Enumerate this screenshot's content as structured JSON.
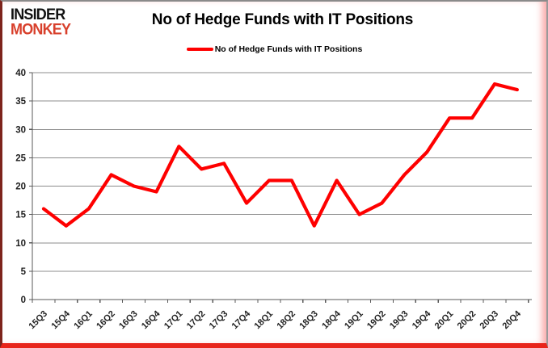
{
  "logo": {
    "line1": "INSIDER",
    "line2": "MONKEY",
    "line2_color": "#d8402c"
  },
  "header": {
    "title": "No of Hedge Funds with IT Positions"
  },
  "legend": {
    "label": "No of Hedge Funds with IT Positions",
    "swatch_color": "#fe0000"
  },
  "chart_data": {
    "type": "line",
    "title": "No of Hedge Funds with IT Positions",
    "categories": [
      "15Q3",
      "15Q4",
      "16Q1",
      "16Q2",
      "16Q3",
      "16Q4",
      "17Q1",
      "17Q2",
      "17Q3",
      "17Q4",
      "18Q1",
      "18Q2",
      "18Q3",
      "18Q4",
      "19Q1",
      "19Q2",
      "19Q3",
      "19Q4",
      "20Q1",
      "20Q2",
      "20Q3",
      "20Q4"
    ],
    "series": [
      {
        "name": "No of Hedge Funds with IT Positions",
        "color": "#fe0000",
        "values": [
          16,
          13,
          16,
          22,
          20,
          19,
          27,
          23,
          24,
          17,
          21,
          21,
          13,
          21,
          15,
          17,
          22,
          26,
          32,
          32,
          38,
          37
        ]
      }
    ],
    "xlabel": "",
    "ylabel": "",
    "ylim": [
      0,
      40
    ],
    "ytick_step": 5,
    "grid": true,
    "legend_position": "top-center",
    "colors": {
      "gridline": "#8c8c8c",
      "axis": "#595959",
      "tick_label": "#1f1f1f"
    }
  }
}
